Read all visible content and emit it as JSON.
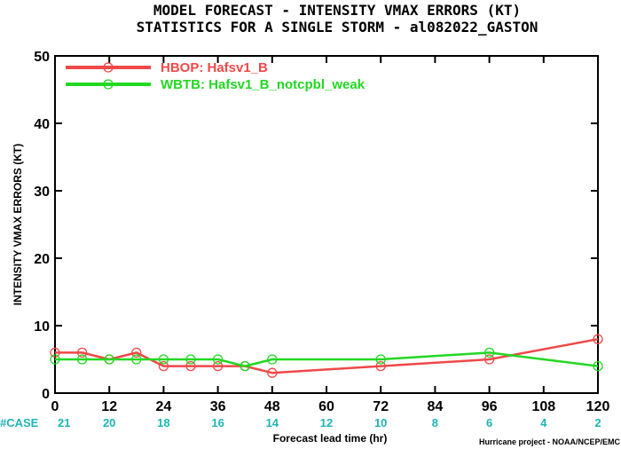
{
  "chart_data": {
    "type": "line",
    "title": "MODEL FORECAST - INTENSITY VMAX ERRORS (KT)",
    "subtitle": "STATISTICS FOR A SINGLE STORM - al082022_GASTON",
    "xlabel": "Forecast lead time (hr)",
    "ylabel": "INTENSITY VMAX ERRORS (KT)",
    "xlim": [
      0,
      120
    ],
    "ylim": [
      0,
      50
    ],
    "xticks": [
      0,
      12,
      24,
      36,
      48,
      60,
      72,
      84,
      96,
      108,
      120
    ],
    "yticks": [
      0,
      10,
      20,
      30,
      40,
      50
    ],
    "legend_position": "top-left",
    "grid": false,
    "series": [
      {
        "name": "HBOP: Hafsv1_B",
        "color": "#f04848",
        "x": [
          0,
          6,
          12,
          18,
          24,
          30,
          36,
          42,
          48,
          72,
          96,
          120
        ],
        "values": [
          6,
          6,
          5,
          6,
          4,
          4,
          4,
          4,
          3,
          4,
          5,
          8
        ]
      },
      {
        "name": "WBTB: Hafsv1_B_notcpbl_weak",
        "color": "#22d822",
        "x": [
          0,
          6,
          12,
          18,
          24,
          30,
          36,
          42,
          48,
          72,
          96,
          120
        ],
        "values": [
          5,
          5,
          5,
          5,
          5,
          5,
          5,
          4,
          5,
          5,
          6,
          4
        ]
      }
    ],
    "case_label": "#CASE",
    "case_x": [
      0,
      12,
      24,
      36,
      48,
      60,
      72,
      84,
      96,
      108,
      120
    ],
    "case_counts": [
      21,
      20,
      18,
      16,
      14,
      12,
      10,
      8,
      6,
      4,
      2
    ],
    "credit": "Hurricane project - NOAA/NCEP/EMC"
  }
}
